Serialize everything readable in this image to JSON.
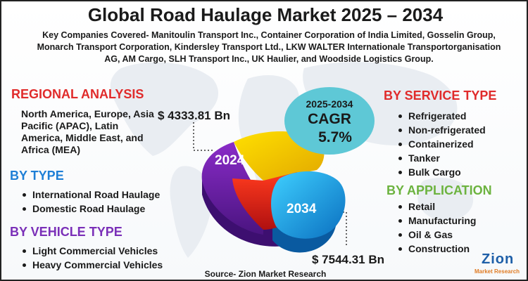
{
  "title": "Global Road Haulage Market 2025 – 2034",
  "companies": "Key Companies Covered- Manitoulin Transport Inc., Container Corporation of India Limited, Gosselin Group, Monarch Transport Corporation, Kindersley Transport Ltd., LKW WALTER Internationale Transportorganisation AG, AM Cargo, SLH Transport Inc., UK Haulier, and Woodside Logistics Group.",
  "regional": {
    "heading": "REGIONAL ANALYSIS",
    "text": "North America, Europe, Asia Pacific (APAC), Latin America, Middle East, and Africa (MEA)"
  },
  "by_type": {
    "heading": "BY TYPE",
    "items": [
      "International Road Haulage",
      "Domestic Road Haulage"
    ]
  },
  "by_vehicle": {
    "heading": "BY VEHICLE TYPE",
    "items": [
      "Light Commercial Vehicles",
      "Heavy Commercial Vehicles"
    ]
  },
  "by_service": {
    "heading": "BY SERVICE TYPE",
    "items": [
      "Refrigerated",
      "Non-refrigerated",
      "Containerized",
      "Tanker",
      "Bulk Cargo"
    ]
  },
  "by_application": {
    "heading": "BY APPLICATION",
    "items": [
      "Retail",
      "Manufacturing",
      "Oil & Gas",
      "Construction"
    ]
  },
  "cagr": {
    "period": "2025-2034",
    "label": "CAGR",
    "value": "5.7%"
  },
  "market": {
    "year_start": "2024",
    "value_start": "$ 4333.81 Bn",
    "year_end": "2034",
    "value_end": "$ 7544.31 Bn"
  },
  "source": "Source- Zion Market Research",
  "logo": {
    "name": "Zion",
    "tagline": "Market Research"
  },
  "colors": {
    "red": "#e02b2b",
    "blue": "#1e7fd6",
    "purple": "#7a2fb8",
    "green": "#6cb33f",
    "cagr": "#5ec8d6"
  }
}
